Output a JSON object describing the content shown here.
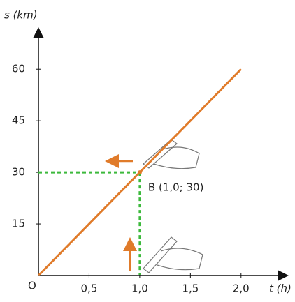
{
  "chart_data": {
    "type": "line",
    "y_label": "s (km)",
    "x_label": "t (h)",
    "origin_label": "O",
    "x": [
      0,
      2.0
    ],
    "values": [
      0,
      60
    ],
    "color": "#e07b2a",
    "xlim": [
      0,
      2.45
    ],
    "ylim": [
      0,
      71
    ],
    "xticks": [
      {
        "value": 0.5,
        "label": "0,5"
      },
      {
        "value": 1.0,
        "label": "1,0"
      },
      {
        "value": 1.5,
        "label": "1,5"
      },
      {
        "value": 2.0,
        "label": "2,0"
      }
    ],
    "yticks": [
      15,
      30,
      45,
      60
    ],
    "point": {
      "x": 1.0,
      "y": 30,
      "label": "B (1,0; 30)",
      "color": "#3cb93c"
    }
  }
}
